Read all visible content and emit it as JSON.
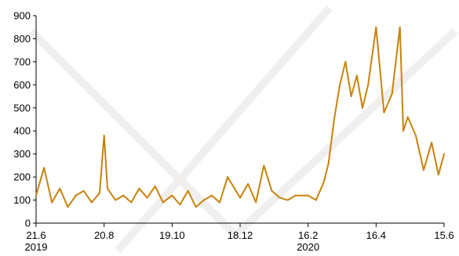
{
  "chart_data": {
    "type": "line",
    "title": "",
    "xlabel": "",
    "ylabel": "",
    "ylim": [
      0,
      900
    ],
    "y_ticks": [
      0,
      100,
      200,
      300,
      400,
      500,
      600,
      700,
      800,
      900
    ],
    "x_ticks": [
      {
        "date": "2019-06-21",
        "label": "21.6",
        "year": "2019"
      },
      {
        "date": "2019-08-20",
        "label": "20.8",
        "year": ""
      },
      {
        "date": "2019-10-19",
        "label": "19.10",
        "year": ""
      },
      {
        "date": "2019-12-18",
        "label": "18.12",
        "year": ""
      },
      {
        "date": "2020-02-16",
        "label": "16.2",
        "year": "2020"
      },
      {
        "date": "2020-04-16",
        "label": "16.4",
        "year": ""
      },
      {
        "date": "2020-06-15",
        "label": "15.6",
        "year": ""
      }
    ],
    "xlim": [
      "2019-06-21",
      "2020-06-15"
    ],
    "grid": false,
    "legend": "none",
    "colors": {
      "line": "#c8820c",
      "axis": "#000000"
    },
    "series": [
      {
        "name": "",
        "x": [
          "2019-06-21",
          "2019-06-28",
          "2019-07-05",
          "2019-07-12",
          "2019-07-19",
          "2019-07-26",
          "2019-08-02",
          "2019-08-09",
          "2019-08-16",
          "2019-08-20",
          "2019-08-23",
          "2019-08-30",
          "2019-09-06",
          "2019-09-13",
          "2019-09-20",
          "2019-09-27",
          "2019-10-04",
          "2019-10-11",
          "2019-10-19",
          "2019-10-26",
          "2019-11-02",
          "2019-11-09",
          "2019-11-16",
          "2019-11-23",
          "2019-11-30",
          "2019-12-07",
          "2019-12-18",
          "2019-12-25",
          "2020-01-01",
          "2020-01-08",
          "2020-01-15",
          "2020-01-22",
          "2020-01-29",
          "2020-02-05",
          "2020-02-16",
          "2020-02-23",
          "2020-03-01",
          "2020-03-05",
          "2020-03-10",
          "2020-03-15",
          "2020-03-20",
          "2020-03-25",
          "2020-03-30",
          "2020-04-04",
          "2020-04-09",
          "2020-04-16",
          "2020-04-23",
          "2020-04-30",
          "2020-05-07",
          "2020-05-10",
          "2020-05-14",
          "2020-05-21",
          "2020-05-28",
          "2020-06-04",
          "2020-06-10",
          "2020-06-15"
        ],
        "values": [
          120,
          240,
          90,
          150,
          70,
          120,
          140,
          90,
          130,
          380,
          150,
          100,
          120,
          90,
          150,
          110,
          160,
          90,
          120,
          80,
          140,
          70,
          100,
          120,
          90,
          200,
          110,
          170,
          90,
          250,
          140,
          110,
          100,
          120,
          120,
          100,
          180,
          260,
          450,
          600,
          700,
          550,
          640,
          500,
          600,
          850,
          480,
          560,
          850,
          400,
          460,
          380,
          230,
          350,
          210,
          300
        ]
      }
    ]
  }
}
